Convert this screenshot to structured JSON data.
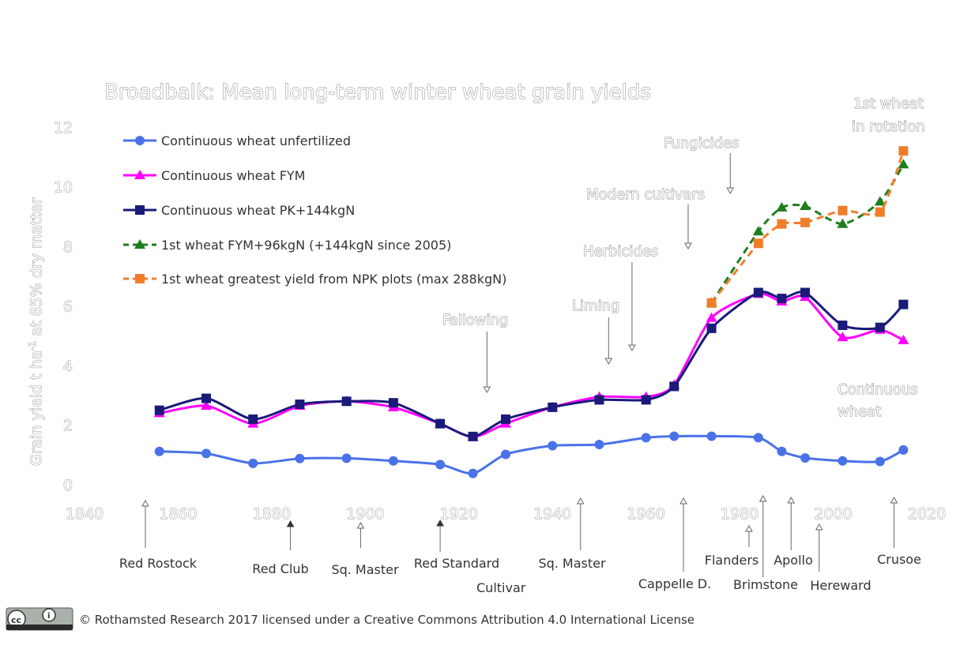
{
  "chart_data": {
    "type": "line",
    "title": "Broadbalk: Mean long-term winter wheat grain yields",
    "ylabel_main": "Grain yield t ha",
    "ylabel_sup": "-1",
    "ylabel_tail": " at 85% dry matter",
    "xlim": [
      1840,
      2020
    ],
    "ylim": [
      0,
      12
    ],
    "x_ticks": [
      1840,
      1860,
      1880,
      1900,
      1920,
      1940,
      1960,
      1980,
      2000,
      2020
    ],
    "y_ticks": [
      0,
      2,
      4,
      6,
      8,
      10,
      12
    ],
    "grid": false,
    "legend_position": "top-left",
    "series": [
      {
        "name": "Continuous wheat unfertilized",
        "color": "#4a72e8",
        "marker": "circle",
        "dash": "solid",
        "x": [
          1856,
          1866,
          1876,
          1886,
          1896,
          1906,
          1916,
          1923,
          1930,
          1940,
          1950,
          1960,
          1966,
          1974,
          1984,
          1989,
          1994,
          2002,
          2010,
          2015
        ],
        "y": [
          1.12,
          1.05,
          0.72,
          0.88,
          0.89,
          0.8,
          0.68,
          0.38,
          1.02,
          1.31,
          1.35,
          1.58,
          1.63,
          1.63,
          1.58,
          1.12,
          0.9,
          0.8,
          0.78,
          1.17
        ]
      },
      {
        "name": "Continuous wheat FYM",
        "color": "#ff00ff",
        "marker": "triangle",
        "dash": "solid",
        "x": [
          1856,
          1866,
          1876,
          1886,
          1896,
          1906,
          1916,
          1923,
          1930,
          1940,
          1950,
          1960,
          1966,
          1974,
          1984,
          1989,
          1994,
          2002,
          2010,
          2015
        ],
        "y": [
          2.4,
          2.65,
          2.05,
          2.65,
          2.8,
          2.6,
          2.05,
          1.6,
          2.05,
          2.6,
          2.95,
          2.95,
          3.35,
          5.6,
          6.4,
          6.15,
          6.3,
          4.95,
          5.2,
          4.85
        ]
      },
      {
        "name": "Continuous wheat PK+144kgN",
        "color": "#1a1a7a",
        "marker": "square",
        "dash": "solid",
        "x": [
          1856,
          1866,
          1876,
          1886,
          1896,
          1906,
          1916,
          1923,
          1930,
          1940,
          1950,
          1960,
          1966,
          1974,
          1984,
          1989,
          1994,
          2002,
          2010,
          2015
        ],
        "y": [
          2.5,
          2.9,
          2.2,
          2.7,
          2.8,
          2.75,
          2.05,
          1.62,
          2.2,
          2.6,
          2.85,
          2.85,
          3.3,
          5.25,
          6.45,
          6.25,
          6.45,
          5.35,
          5.28,
          6.05
        ]
      },
      {
        "name": "1st wheat FYM+96kgN (+144kgN since 2005)",
        "color": "#1e7e1e",
        "marker": "triangle",
        "dash": "dashed",
        "x": [
          1974,
          1984,
          1989,
          1994,
          2002,
          2010,
          2015
        ],
        "y": [
          6.1,
          8.5,
          9.3,
          9.35,
          8.75,
          9.5,
          10.75
        ]
      },
      {
        "name": "1st wheat greatest yield from NPK plots (max 288kgN)",
        "color": "#f07d2a",
        "marker": "square",
        "dash": "dashed",
        "x": [
          1974,
          1984,
          1989,
          1994,
          2002,
          2010,
          2015
        ],
        "y": [
          6.1,
          8.1,
          8.75,
          8.8,
          9.2,
          9.15,
          11.2
        ]
      }
    ],
    "annotations": [
      {
        "id": "fallowing",
        "text": "Fallowing",
        "arrow_x": 1926
      },
      {
        "id": "liming",
        "text": "Liming",
        "arrow_x": 1952
      },
      {
        "id": "herbicides",
        "text": "Herbicides",
        "arrow_x": 1957
      },
      {
        "id": "modern-cultivars",
        "text": "Modern cultivars",
        "arrow_x": 1969
      },
      {
        "id": "fungicides",
        "text": "Fungicides",
        "arrow_x": 1978
      },
      {
        "id": "first-wheat",
        "text_line1": "1st wheat",
        "text_line2": "in rotation"
      },
      {
        "id": "continuous-wheat",
        "text_line1": "Continuous",
        "text_line2": "wheat"
      }
    ]
  },
  "cultivar_axis_label": "Cultivar",
  "cultivars": [
    {
      "id": "red-rostock",
      "label": "Red Rostock",
      "year": 1853
    },
    {
      "id": "red-club",
      "label": "Red Club",
      "year": 1884
    },
    {
      "id": "sq-master-1",
      "label": "Sq. Master",
      "year": 1899
    },
    {
      "id": "red-standard",
      "label": "Red Standard",
      "year": 1916
    },
    {
      "id": "sq-master-2",
      "label": "Sq. Master",
      "year": 1946
    },
    {
      "id": "cappelle",
      "label": "Cappelle D.",
      "year": 1968
    },
    {
      "id": "flanders",
      "label": "Flanders",
      "year": 1982
    },
    {
      "id": "brimstone",
      "label": "Brimstone",
      "year": 1985
    },
    {
      "id": "apollo",
      "label": "Apollo",
      "year": 1991
    },
    {
      "id": "hereward",
      "label": "Hereward",
      "year": 1997
    },
    {
      "id": "crusoe",
      "label": "Crusoe",
      "year": 2013
    }
  ],
  "license": {
    "text": "© Rothamsted Research 2017 licensed under a Creative Commons Attribution 4.0 International License",
    "badge_left": "cc",
    "badge_right": "i"
  }
}
